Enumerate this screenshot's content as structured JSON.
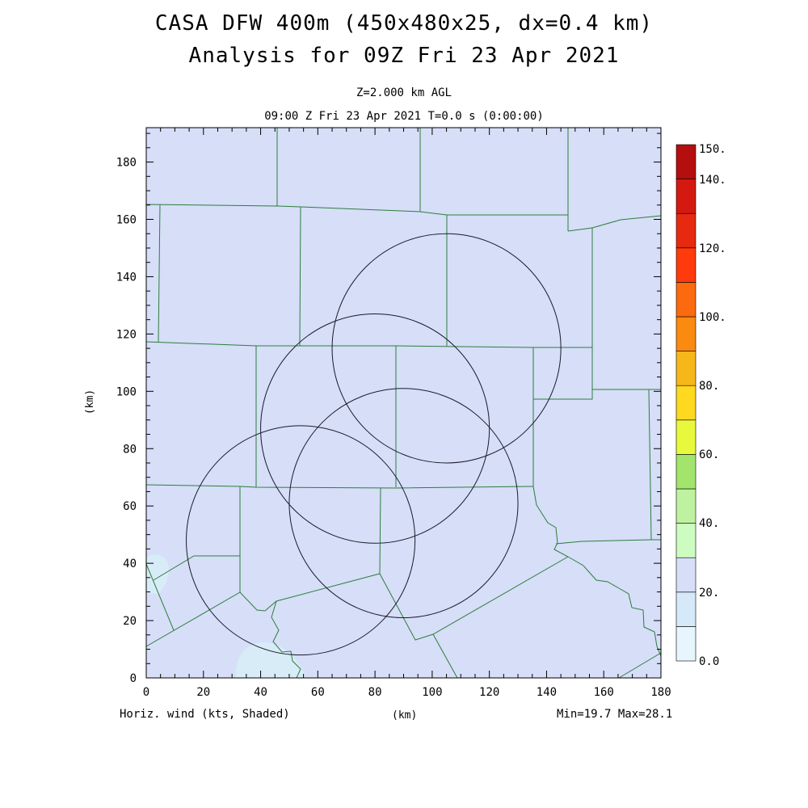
{
  "header": {
    "title_line1": "CASA DFW 400m (450x480x25, dx=0.4 km)",
    "title_line2": "Analysis for 09Z Fri 23 Apr 2021",
    "level": "Z=2.000 km AGL",
    "valid_time": "09:00 Z Fri 23 Apr 2021   T=0.0 s (0:00:00)"
  },
  "axes": {
    "x_label": "(km)",
    "y_label": "(km)",
    "x_ticks": [
      "0",
      "20",
      "40",
      "60",
      "80",
      "100",
      "120",
      "140",
      "160",
      "180"
    ],
    "y_ticks": [
      "0",
      "20",
      "40",
      "60",
      "80",
      "100",
      "120",
      "140",
      "160",
      "180"
    ],
    "xlim": [
      0,
      180
    ],
    "ylim": [
      0,
      192
    ]
  },
  "footer": {
    "left": "Horiz. wind (kts, Shaded)",
    "center": "(km)",
    "right": "Min=19.7 Max=28.1"
  },
  "colorbar": {
    "labels": [
      "150.",
      "140.",
      "120.",
      "100.",
      "80.",
      "60.",
      "40.",
      "20.",
      "0.0"
    ],
    "colors": [
      "#e6f6fc",
      "#d5e9f8",
      "#d6def8",
      "#cdfcc0",
      "#bef2a0",
      "#a3e46c",
      "#e8f83c",
      "#ffd820",
      "#f7b61a",
      "#fb8a10",
      "#fb6a0e",
      "#ff3a0c",
      "#e62a10",
      "#d41a10",
      "#b40e0e"
    ]
  },
  "map": {
    "background_color": "#d6def8",
    "light_patch_color": "#d8ecf8",
    "county_line_color": "#2e7d3c",
    "radar_ring_color": "#1a1a2a",
    "radar_rings": [
      {
        "name": "ring-northeast",
        "cx": 105,
        "cy": 115,
        "r": 40
      },
      {
        "name": "ring-north-central",
        "cx": 80,
        "cy": 87,
        "r": 40
      },
      {
        "name": "ring-central",
        "cx": 90,
        "cy": 61,
        "r": 40
      },
      {
        "name": "ring-southwest",
        "cx": 54,
        "cy": 48,
        "r": 40
      }
    ]
  }
}
